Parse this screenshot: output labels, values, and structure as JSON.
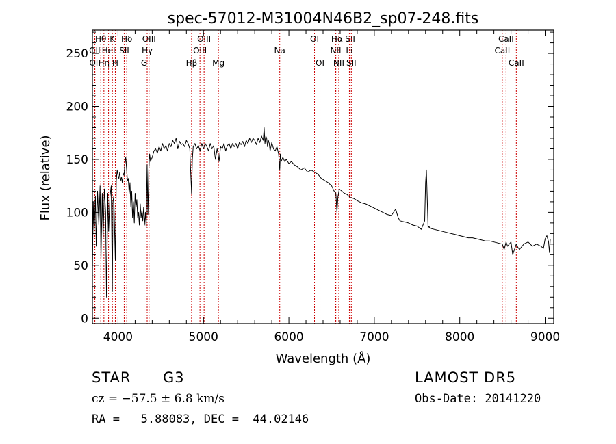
{
  "chart_data": {
    "type": "line",
    "title": "spec-57012-M31004N46B2_sp07-248.fits",
    "xlabel": "Wavelength (Å)",
    "ylabel": "Flux (relative)",
    "xlim": [
      3700,
      9100
    ],
    "ylim": [
      -5,
      272
    ],
    "x_ticks": [
      4000,
      5000,
      6000,
      7000,
      8000,
      9000
    ],
    "y_ticks": [
      0,
      50,
      100,
      150,
      200,
      250
    ],
    "grid": false,
    "line_color": "#000000",
    "marker_color": "#cc0000",
    "spectrum": {
      "x": [
        3700,
        3710,
        3720,
        3735,
        3745,
        3760,
        3775,
        3790,
        3800,
        3815,
        3825,
        3840,
        3855,
        3865,
        3880,
        3890,
        3905,
        3920,
        3933,
        3940,
        3950,
        3968,
        3980,
        3990,
        4000,
        4010,
        4020,
        4030,
        4040,
        4050,
        4060,
        4070,
        4080,
        4090,
        4101,
        4110,
        4120,
        4130,
        4140,
        4150,
        4160,
        4170,
        4180,
        4190,
        4200,
        4210,
        4220,
        4230,
        4240,
        4250,
        4260,
        4270,
        4280,
        4290,
        4300,
        4310,
        4320,
        4330,
        4340,
        4350,
        4360,
        4370,
        4380,
        4400,
        4420,
        4440,
        4460,
        4480,
        4500,
        4520,
        4540,
        4560,
        4580,
        4600,
        4620,
        4640,
        4660,
        4680,
        4700,
        4720,
        4740,
        4760,
        4780,
        4800,
        4820,
        4840,
        4850,
        4861,
        4870,
        4880,
        4900,
        4920,
        4940,
        4960,
        4980,
        5000,
        5020,
        5040,
        5060,
        5080,
        5100,
        5120,
        5140,
        5160,
        5172,
        5183,
        5200,
        5220,
        5240,
        5260,
        5280,
        5300,
        5320,
        5340,
        5360,
        5380,
        5400,
        5420,
        5440,
        5460,
        5480,
        5500,
        5520,
        5540,
        5560,
        5580,
        5600,
        5620,
        5640,
        5660,
        5680,
        5700,
        5710,
        5720,
        5730,
        5740,
        5750,
        5760,
        5770,
        5780,
        5800,
        5820,
        5840,
        5860,
        5880,
        5893,
        5900,
        5910,
        5930,
        5950,
        5970,
        6000,
        6030,
        6060,
        6100,
        6140,
        6180,
        6220,
        6260,
        6300,
        6340,
        6380,
        6420,
        6460,
        6500,
        6530,
        6550,
        6563,
        6575,
        6590,
        6620,
        6650,
        6680,
        6720,
        6760,
        6800,
        6850,
        6900,
        6950,
        7000,
        7050,
        7100,
        7150,
        7200,
        7250,
        7280,
        7300,
        7350,
        7400,
        7450,
        7500,
        7550,
        7590,
        7600,
        7610,
        7620,
        7630,
        7640,
        7650,
        7700,
        7750,
        7800,
        7850,
        7900,
        7950,
        8000,
        8050,
        8100,
        8150,
        8200,
        8250,
        8300,
        8350,
        8400,
        8450,
        8498,
        8520,
        8542,
        8560,
        8600,
        8620,
        8662,
        8680,
        8700,
        8750,
        8800,
        8850,
        8900,
        8950,
        8980,
        9000,
        9020,
        9040,
        9050,
        9060
      ],
      "y": [
        45,
        110,
        80,
        115,
        68,
        120,
        88,
        125,
        55,
        118,
        75,
        122,
        100,
        20,
        118,
        82,
        115,
        125,
        25,
        110,
        115,
        55,
        130,
        140,
        135,
        132,
        138,
        130,
        133,
        128,
        137,
        135,
        145,
        152,
        140,
        130,
        132,
        118,
        128,
        105,
        120,
        95,
        110,
        90,
        118,
        105,
        112,
        95,
        100,
        88,
        108,
        95,
        102,
        92,
        105,
        88,
        100,
        85,
        145,
        98,
        140,
        155,
        148,
        152,
        158,
        160,
        156,
        162,
        158,
        165,
        160,
        163,
        158,
        165,
        162,
        168,
        165,
        170,
        160,
        167,
        164,
        165,
        162,
        168,
        165,
        160,
        140,
        118,
        150,
        162,
        165,
        160,
        163,
        158,
        165,
        160,
        165,
        162,
        158,
        165,
        160,
        163,
        150,
        160,
        155,
        148,
        162,
        160,
        165,
        158,
        163,
        165,
        160,
        165,
        162,
        165,
        160,
        166,
        164,
        167,
        162,
        168,
        165,
        170,
        166,
        170,
        168,
        164,
        170,
        166,
        172,
        168,
        180,
        165,
        172,
        170,
        162,
        168,
        165,
        158,
        166,
        160,
        158,
        162,
        155,
        140,
        155,
        148,
        152,
        148,
        150,
        146,
        148,
        145,
        143,
        140,
        142,
        138,
        140,
        138,
        136,
        132,
        130,
        128,
        125,
        120,
        118,
        100,
        115,
        122,
        120,
        118,
        117,
        114,
        113,
        111,
        109,
        108,
        106,
        104,
        102,
        100,
        98,
        97,
        103,
        95,
        92,
        91,
        90,
        88,
        87,
        84,
        92,
        128,
        140,
        112,
        85,
        87,
        85,
        84,
        83,
        82,
        81,
        80,
        79,
        78,
        77,
        76,
        76,
        75,
        74,
        73,
        73,
        72,
        71,
        70,
        65,
        72,
        68,
        72,
        60,
        70,
        67,
        65,
        70,
        72,
        68,
        70,
        68,
        66,
        75,
        78,
        72,
        62,
        75
      ]
    },
    "line_markers": [
      {
        "label": "Hθ",
        "x": 3798,
        "row": 1
      },
      {
        "label": "OII",
        "x": 3727,
        "row": 2
      },
      {
        "label": "OII",
        "x": 3729,
        "row": 3
      },
      {
        "label": "Hη",
        "x": 3835,
        "row": 3
      },
      {
        "label": "HeI",
        "x": 3889,
        "row": 2
      },
      {
        "label": "K",
        "x": 3934,
        "row": 1
      },
      {
        "label": "H",
        "x": 3968,
        "row": 3
      },
      {
        "label": "SII",
        "x": 4072,
        "row": 2
      },
      {
        "label": "Hδ",
        "x": 4102,
        "row": 1
      },
      {
        "label": "G",
        "x": 4305,
        "row": 3
      },
      {
        "label": "OIII",
        "x": 4363,
        "row": 1
      },
      {
        "label": "Hγ",
        "x": 4341,
        "row": 2
      },
      {
        "label": "Hβ",
        "x": 4861,
        "row": 3
      },
      {
        "label": "OIII",
        "x": 4959,
        "row": 2
      },
      {
        "label": "OIII",
        "x": 5007,
        "row": 1
      },
      {
        "label": "Mg",
        "x": 5175,
        "row": 3
      },
      {
        "label": "Na",
        "x": 5893,
        "row": 2
      },
      {
        "label": "OI",
        "x": 6300,
        "row": 1
      },
      {
        "label": "OI",
        "x": 6364,
        "row": 3
      },
      {
        "label": "NII",
        "x": 6548,
        "row": 2
      },
      {
        "label": "Hα",
        "x": 6563,
        "row": 1
      },
      {
        "label": "NII",
        "x": 6584,
        "row": 3
      },
      {
        "label": "SII",
        "x": 6717,
        "row": 1
      },
      {
        "label": "SII",
        "x": 6731,
        "row": 3
      },
      {
        "label": "Li",
        "x": 6708,
        "row": 2
      },
      {
        "label": "CaII",
        "x": 8498,
        "row": 2
      },
      {
        "label": "CaII",
        "x": 8542,
        "row": 1
      },
      {
        "label": "CaII",
        "x": 8662,
        "row": 3
      }
    ]
  },
  "info": {
    "object_class": "STAR",
    "subclass": "G3",
    "survey": "LAMOST DR5",
    "redshift": "cz = −57.5 ± 6.8 km/s",
    "obs_date": "Obs-Date: 20141220",
    "coords": "RA =   5.88083, DEC =  44.02146"
  }
}
